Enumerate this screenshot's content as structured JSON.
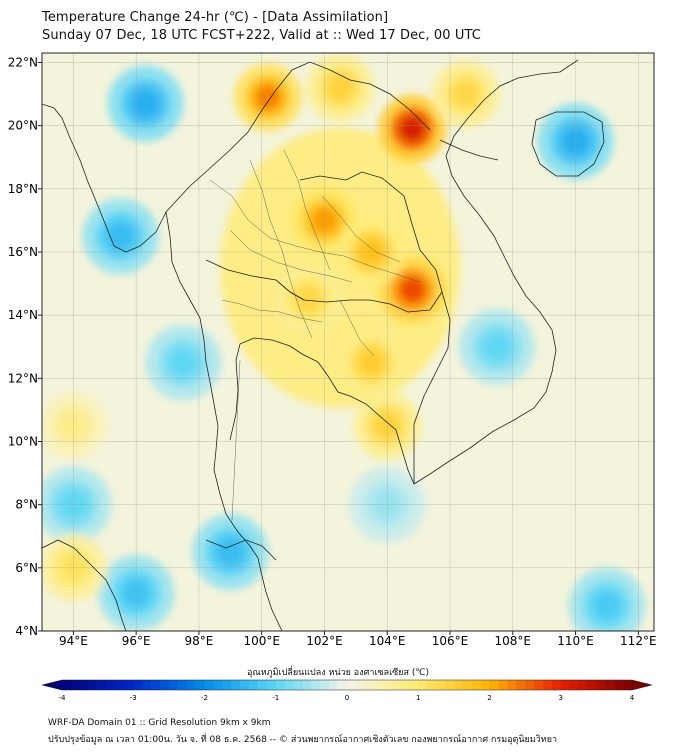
{
  "header": {
    "title_line1": "Temperature Change 24-hr (℃) - [Data Assimilation]",
    "title_line2": "Sunday 07 Dec, 18 UTC FCST+222, Valid at :: Wed 17 Dec, 00 UTC"
  },
  "map": {
    "lat_labels": [
      "22°N",
      "20°N",
      "18°N",
      "16°N",
      "14°N",
      "12°N",
      "10°N",
      "8°N",
      "6°N",
      "4°N"
    ],
    "lat_values": [
      22,
      20,
      18,
      16,
      14,
      12,
      10,
      8,
      6,
      4
    ],
    "lon_labels": [
      "94°E",
      "96°E",
      "98°E",
      "100°E",
      "102°E",
      "104°E",
      "106°E",
      "108°E",
      "110°E",
      "112°E"
    ],
    "lon_values": [
      94,
      96,
      98,
      100,
      102,
      104,
      106,
      108,
      110,
      112
    ],
    "lat_range": [
      4,
      22.3
    ],
    "lon_range": [
      93,
      112.5
    ],
    "grid": true,
    "hotspots": [
      {
        "lat": 19.9,
        "lon": 104.8,
        "value": 3.2
      },
      {
        "lat": 14.8,
        "lon": 104.8,
        "value": 2.8
      },
      {
        "lat": 20.9,
        "lon": 100.2,
        "value": 2.4
      },
      {
        "lat": 17.0,
        "lon": 102.0,
        "value": 2.2
      },
      {
        "lat": 16.0,
        "lon": 103.5,
        "value": 1.8
      },
      {
        "lat": 14.5,
        "lon": 101.5,
        "value": 1.4
      },
      {
        "lat": 12.5,
        "lon": 103.5,
        "value": 1.6
      },
      {
        "lat": 10.5,
        "lon": 104.0,
        "value": 1.5
      },
      {
        "lat": 21.2,
        "lon": 102.5,
        "value": 1.5
      },
      {
        "lat": 21.0,
        "lon": 106.5,
        "value": 1.4
      },
      {
        "lat": 20.7,
        "lon": 96.3,
        "value": -1.6
      },
      {
        "lat": 19.5,
        "lon": 110.0,
        "value": -1.6
      },
      {
        "lat": 16.5,
        "lon": 95.5,
        "value": -1.4
      },
      {
        "lat": 12.5,
        "lon": 97.5,
        "value": -1.0
      },
      {
        "lat": 8.0,
        "lon": 94.0,
        "value": -1.0
      },
      {
        "lat": 6.5,
        "lon": 99.0,
        "value": -1.4
      },
      {
        "lat": 5.2,
        "lon": 96.0,
        "value": -1.3
      },
      {
        "lat": 4.8,
        "lon": 111.0,
        "value": -1.2
      },
      {
        "lat": 13.0,
        "lon": 107.5,
        "value": -1.0
      },
      {
        "lat": 8.0,
        "lon": 104.0,
        "value": -0.6
      },
      {
        "lat": 6.0,
        "lon": 94.0,
        "value": 1.2
      },
      {
        "lat": 10.5,
        "lon": 94.0,
        "value": 0.8
      }
    ]
  },
  "colorbar": {
    "label": "อุณหภูมิเปลี่ยนแปลง หน่วย องศาเซลเซียส (℃)",
    "ticks": [
      "-4",
      "-3",
      "-2",
      "-1",
      "0",
      "1",
      "2",
      "3",
      "4"
    ],
    "range": [
      -4,
      4
    ]
  },
  "footer": {
    "line1": "WRF-DA Domain 01 :: Grid Resolution 9km x 9km",
    "line2": "ปรับปรุงข้อมูล ณ เวลา 01:00น. วัน จ. ที่ 08 ธ.ค. 2568 -- © ส่วนพยากรณ์อากาศเชิงตัวเลข กองพยากรณ์อากาศ กรมอุตุนิยมวิทยา"
  },
  "colors": {
    "cold_deep": "#00007a",
    "cold": "#2fc6f0",
    "neutral": "#f5f5e8",
    "warm": "#ffd000",
    "hot": "#e80000",
    "hot_deep": "#7a0000",
    "border": "#222222",
    "grid": "#9a9a9a"
  }
}
